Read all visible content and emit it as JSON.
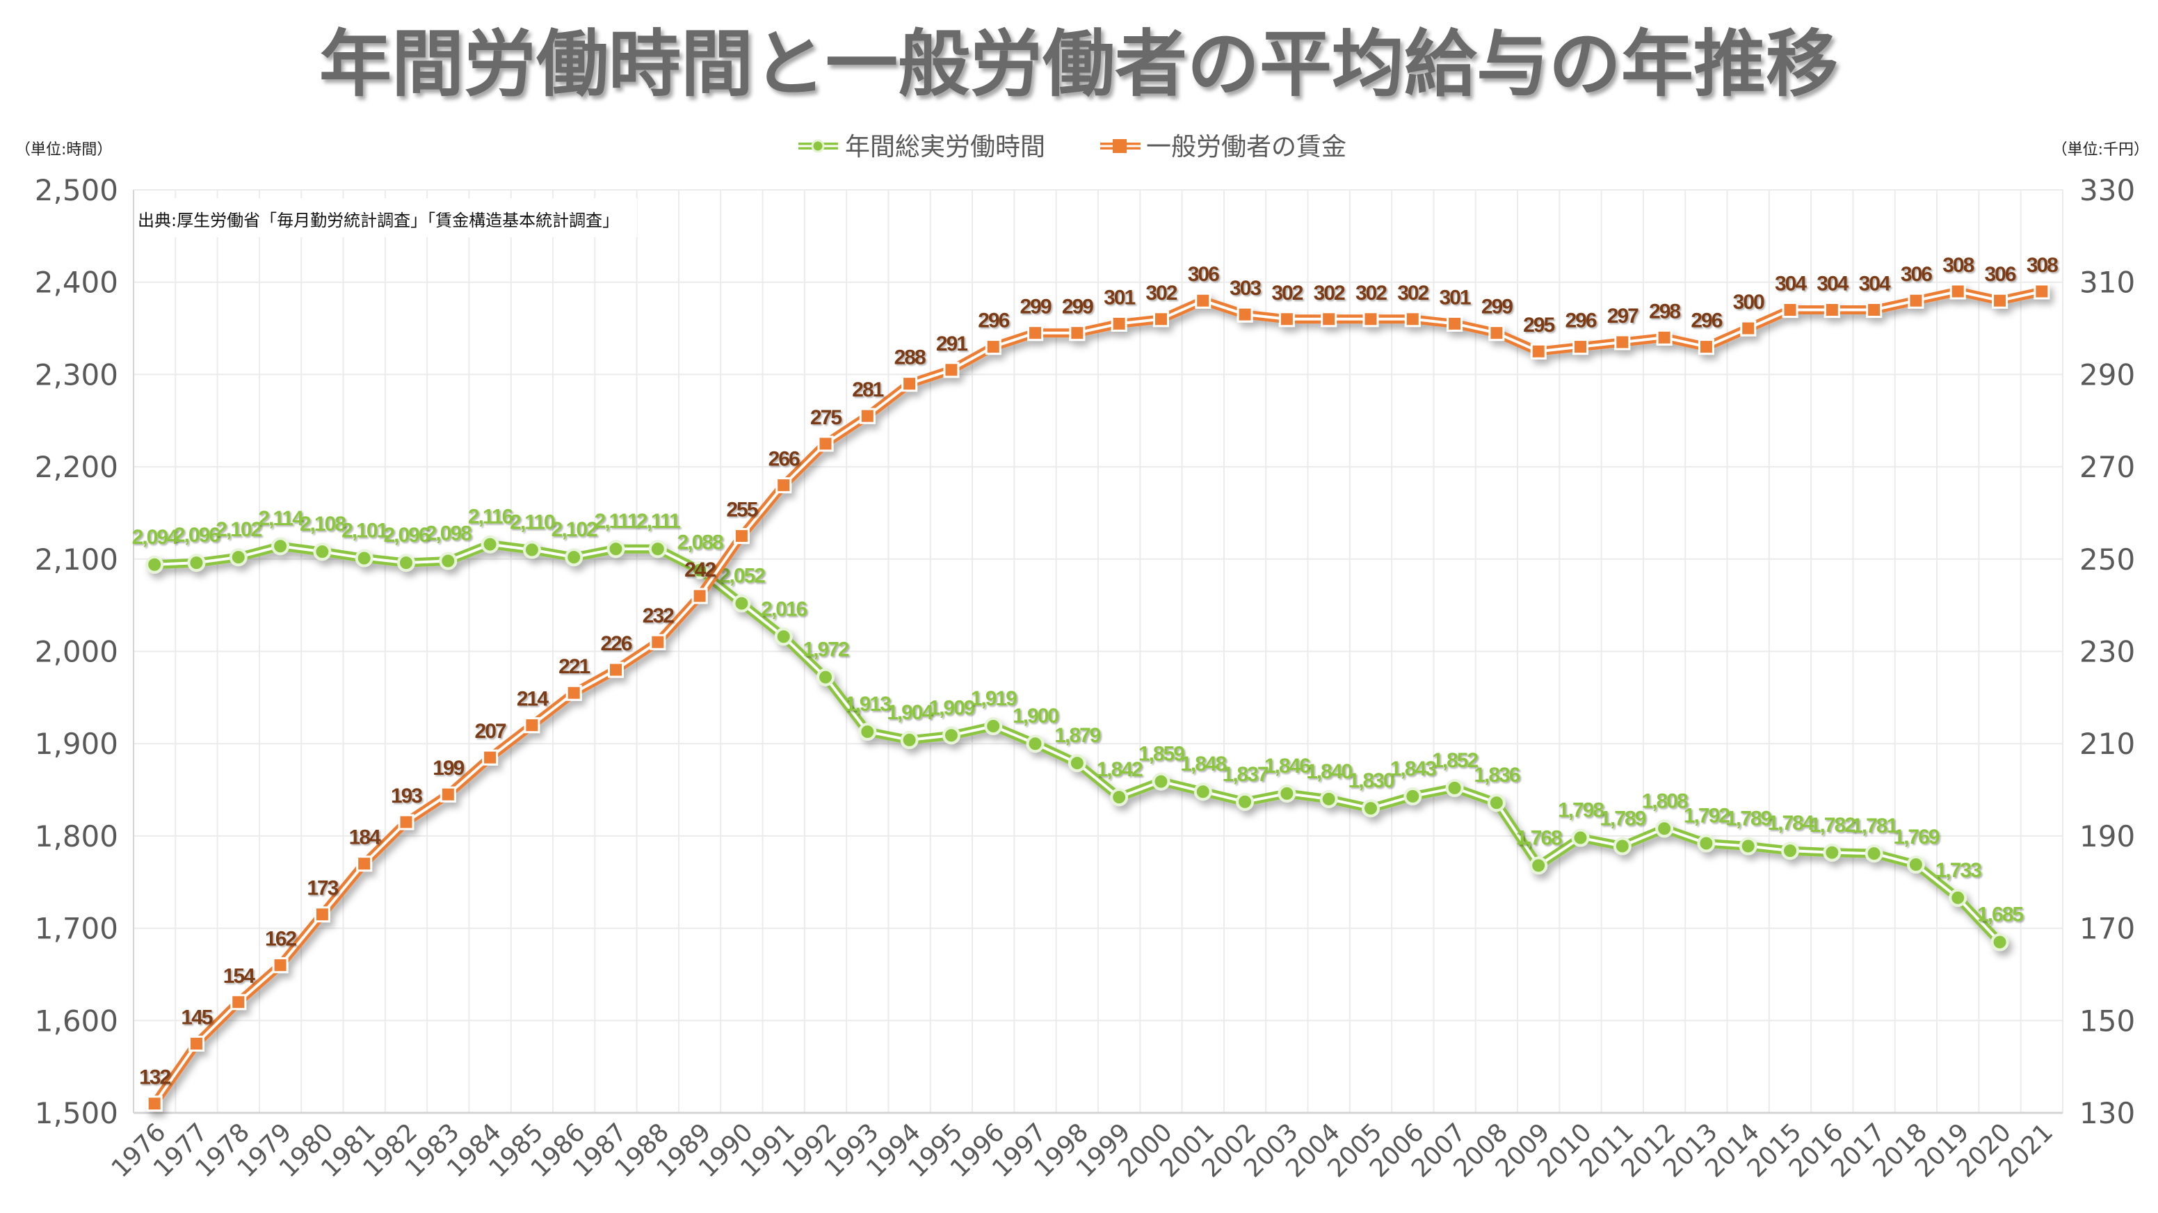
{
  "chart_data": {
    "type": "line",
    "title": "年間労働時間と一般労働者の平均給与の年推移",
    "source_note": "出典:厚生労働省「毎月勤労統計調査」「賃金構造基本統計調査」",
    "left_unit": "（単位:時間）",
    "right_unit": "（単位:千円）",
    "left_axis": {
      "ylim": [
        1500,
        2500
      ],
      "ticks": [
        "1,500",
        "1,600",
        "1,700",
        "1,800",
        "1,900",
        "2,000",
        "2,100",
        "2,200",
        "2,300",
        "2,400",
        "2,500"
      ]
    },
    "right_axis": {
      "ylim": [
        130,
        330
      ],
      "ticks": [
        "130",
        "150",
        "170",
        "190",
        "210",
        "230",
        "250",
        "270",
        "290",
        "310",
        "330"
      ]
    },
    "grid": true,
    "legend_position": "top-center",
    "categories": [
      "1976",
      "1977",
      "1978",
      "1979",
      "1980",
      "1981",
      "1982",
      "1983",
      "1984",
      "1985",
      "1986",
      "1987",
      "1988",
      "1989",
      "1990",
      "1991",
      "1992",
      "1993",
      "1994",
      "1995",
      "1996",
      "1997",
      "1998",
      "1999",
      "2000",
      "2001",
      "2002",
      "2003",
      "2004",
      "2005",
      "2006",
      "2007",
      "2008",
      "2009",
      "2010",
      "2011",
      "2012",
      "2013",
      "2014",
      "2015",
      "2016",
      "2017",
      "2018",
      "2019",
      "2020",
      "2021"
    ],
    "series": [
      {
        "name": "年間総実労働時間",
        "axis": "left",
        "color": "#8cc63f",
        "values": [
          2094,
          2096,
          2102,
          2114,
          2108,
          2101,
          2096,
          2098,
          2116,
          2110,
          2102,
          2111,
          2111,
          2088,
          2052,
          2016,
          1972,
          1913,
          1904,
          1909,
          1919,
          1900,
          1879,
          1842,
          1859,
          1848,
          1837,
          1846,
          1840,
          1830,
          1843,
          1852,
          1836,
          1768,
          1798,
          1789,
          1808,
          1792,
          1789,
          1784,
          1782,
          1781,
          1769,
          1733,
          1685,
          null
        ]
      },
      {
        "name": "一般労働者の賃金",
        "axis": "right",
        "color": "#ed7d31",
        "values": [
          132,
          145,
          154,
          162,
          173,
          184,
          193,
          199,
          207,
          214,
          221,
          226,
          232,
          242,
          255,
          266,
          275,
          281,
          288,
          291,
          296,
          299,
          299,
          301,
          302,
          306,
          303,
          302,
          302,
          302,
          302,
          301,
          299,
          295,
          296,
          297,
          298,
          296,
          300,
          304,
          304,
          304,
          306,
          308,
          306,
          308
        ]
      }
    ]
  }
}
